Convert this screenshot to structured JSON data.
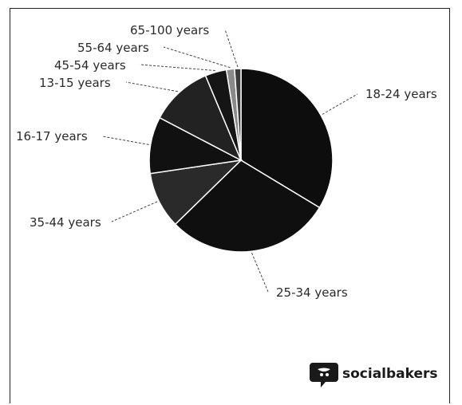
{
  "chart_data": {
    "type": "pie",
    "title": "",
    "slices": [
      {
        "label": "18-24 years",
        "value": 33.0,
        "color": "#0d0d0d"
      },
      {
        "label": "25-34 years",
        "value": 28.5,
        "color": "#0f0f0f"
      },
      {
        "label": "35-44 years",
        "value": 9.8,
        "color": "#2a2a2a"
      },
      {
        "label": "16-17 years",
        "value": 9.8,
        "color": "#111111"
      },
      {
        "label": "13-15 years",
        "value": 10.8,
        "color": "#222222"
      },
      {
        "label": "45-54 years",
        "value": 3.7,
        "color": "#151515"
      },
      {
        "label": "55-64 years",
        "value": 1.4,
        "color": "#8a8a8a"
      },
      {
        "label": "65-100 years",
        "value": 1.1,
        "color": "#3a3a3a"
      }
    ],
    "legend": "none"
  },
  "brand": {
    "name": "socialbakers",
    "icon": "chat-bubble-logo-icon"
  }
}
